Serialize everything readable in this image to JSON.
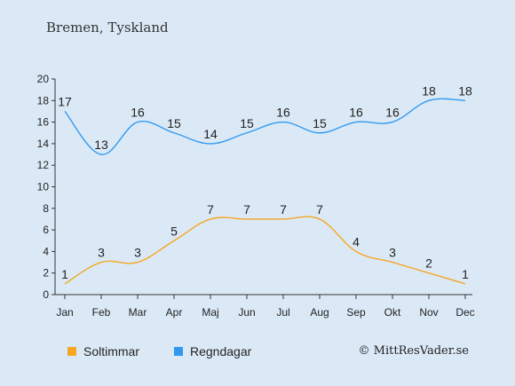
{
  "chart_data": {
    "type": "line",
    "title": "Bremen, Tyskland",
    "categories": [
      "Jan",
      "Feb",
      "Mar",
      "Apr",
      "Maj",
      "Jun",
      "Jul",
      "Aug",
      "Sep",
      "Okt",
      "Nov",
      "Dec"
    ],
    "series": [
      {
        "name": "Soltimmar",
        "color": "#f5a623",
        "values": [
          1,
          3,
          3,
          5,
          7,
          7,
          7,
          7,
          4,
          3,
          2,
          1
        ]
      },
      {
        "name": "Regndagar",
        "color": "#3399ee",
        "values": [
          17,
          13,
          16,
          15,
          14,
          15,
          16,
          15,
          16,
          16,
          18,
          18
        ]
      }
    ],
    "yticks": [
      0,
      2,
      4,
      6,
      8,
      10,
      12,
      14,
      16,
      18,
      20
    ],
    "ylim": [
      0,
      20
    ],
    "grid": false,
    "legend_position": "bottom-left",
    "data_labels": true
  },
  "credit": "© MittResVader.se"
}
